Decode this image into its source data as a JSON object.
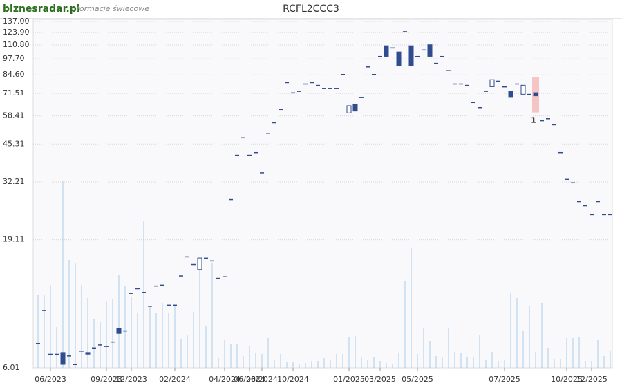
{
  "header": {
    "logo": "biznesradar.pl",
    "subtitle": "formacje świecowe"
  },
  "chart_data": {
    "type": "candlestick",
    "title": "RCFL2CCC3",
    "categories": [
      null,
      null,
      "06/2023",
      null,
      null,
      null,
      null,
      null,
      null,
      null,
      null,
      "09/2023",
      null,
      null,
      null,
      "12/2023",
      null,
      null,
      null,
      null,
      null,
      null,
      "02/2024",
      null,
      null,
      null,
      null,
      null,
      null,
      null,
      "04/2024",
      null,
      null,
      null,
      "06/2024",
      null,
      "08/2024",
      null,
      null,
      null,
      null,
      "10/2024",
      null,
      null,
      null,
      null,
      null,
      null,
      null,
      null,
      "01/2025",
      null,
      null,
      null,
      null,
      "03/2025",
      null,
      null,
      null,
      null,
      null,
      "05/2025",
      null,
      null,
      null,
      null,
      null,
      null,
      null,
      null,
      null,
      null,
      null,
      null,
      null,
      "07/2025",
      null,
      null,
      null,
      null,
      null,
      null,
      null,
      null,
      null,
      "10/2025",
      null,
      null,
      null,
      "12/2025",
      null,
      null,
      null
    ],
    "open": [
      7.5,
      10.1,
      6.8,
      6.8,
      6.9,
      6.7,
      6.2,
      7.0,
      6.9,
      7.2,
      7.4,
      7.3,
      7.6,
      8.6,
      8.4,
      11.8,
      12.3,
      11.9,
      10.5,
      12.6,
      12.7,
      10.6,
      10.6,
      13.8,
      16.4,
      15.3,
      14.6,
      16.2,
      15.8,
      13.5,
      13.7,
      27.5,
      41,
      48,
      41,
      42,
      35,
      50,
      55,
      62,
      79,
      72,
      73,
      78,
      79,
      77,
      75,
      75,
      75,
      85,
      60,
      65,
      69,
      91,
      85,
      100,
      110,
      108,
      104,
      125,
      110,
      100,
      106,
      111,
      94,
      100,
      88,
      78,
      78,
      77,
      66,
      63,
      73,
      76,
      80,
      76,
      73,
      78,
      71,
      71,
      72,
      56,
      57,
      54,
      42,
      33,
      32,
      27,
      26,
      24,
      27,
      24,
      24
    ],
    "close": [
      7.5,
      10.1,
      6.8,
      6.8,
      6.2,
      6.7,
      6.2,
      7.0,
      6.8,
      7.2,
      7.4,
      7.3,
      7.6,
      8.2,
      8.4,
      11.8,
      12.3,
      11.9,
      10.5,
      12.6,
      12.7,
      10.6,
      10.6,
      13.8,
      16.4,
      15.3,
      16.2,
      16.2,
      15.8,
      13.5,
      13.7,
      27.5,
      41,
      48,
      41,
      42,
      35,
      50,
      55,
      62,
      79,
      72,
      73,
      78,
      79,
      77,
      75,
      75,
      75,
      85,
      64,
      61,
      69,
      91,
      85,
      100,
      100,
      108,
      92,
      125,
      92,
      100,
      106,
      100,
      94,
      100,
      88,
      78,
      78,
      77,
      66,
      63,
      73,
      81,
      80,
      76,
      69,
      78,
      77,
      71,
      70,
      56,
      57,
      54,
      42,
      33,
      32,
      27,
      26,
      24,
      27,
      24,
      24
    ],
    "volume": [
      106,
      106,
      120,
      59,
      270,
      156,
      151,
      120,
      101,
      70,
      67,
      96,
      100,
      135,
      119,
      102,
      80,
      212,
      89,
      80,
      94,
      80,
      89,
      42,
      47,
      81,
      154,
      60,
      151,
      15,
      40,
      35,
      35,
      17,
      32,
      22,
      20,
      43,
      12,
      20,
      9,
      8,
      5,
      7,
      10,
      10,
      15,
      12,
      20,
      20,
      45,
      46,
      16,
      12,
      16,
      10,
      7,
      5,
      22,
      125,
      174,
      20,
      57,
      39,
      17,
      16,
      57,
      23,
      21,
      16,
      16,
      47,
      12,
      23,
      10,
      12,
      109,
      101,
      53,
      90,
      23,
      94,
      29,
      13,
      13,
      43,
      43,
      44,
      10,
      10,
      41,
      17,
      25
    ],
    "highlight": {
      "index": 80,
      "label": "1"
    },
    "ylim": [
      6.01,
      137
    ],
    "log_scale": true,
    "grid": true,
    "yticks": [
      6.01,
      19.11,
      32.21,
      45.31,
      58.41,
      71.51,
      {
        "value": 84.6,
        "label": "84.60"
      },
      {
        "value": 97.7,
        "label": "97.70"
      },
      {
        "value": 110.8,
        "label": "110.80"
      },
      {
        "value": 123.9,
        "label": "123.90"
      },
      {
        "value": 137,
        "label": "137.00"
      }
    ],
    "up_color": "#ffffff",
    "down_color": "#2f4c8f",
    "wick_color": "#2f4c8f",
    "volume_color": "#a9cdea"
  }
}
